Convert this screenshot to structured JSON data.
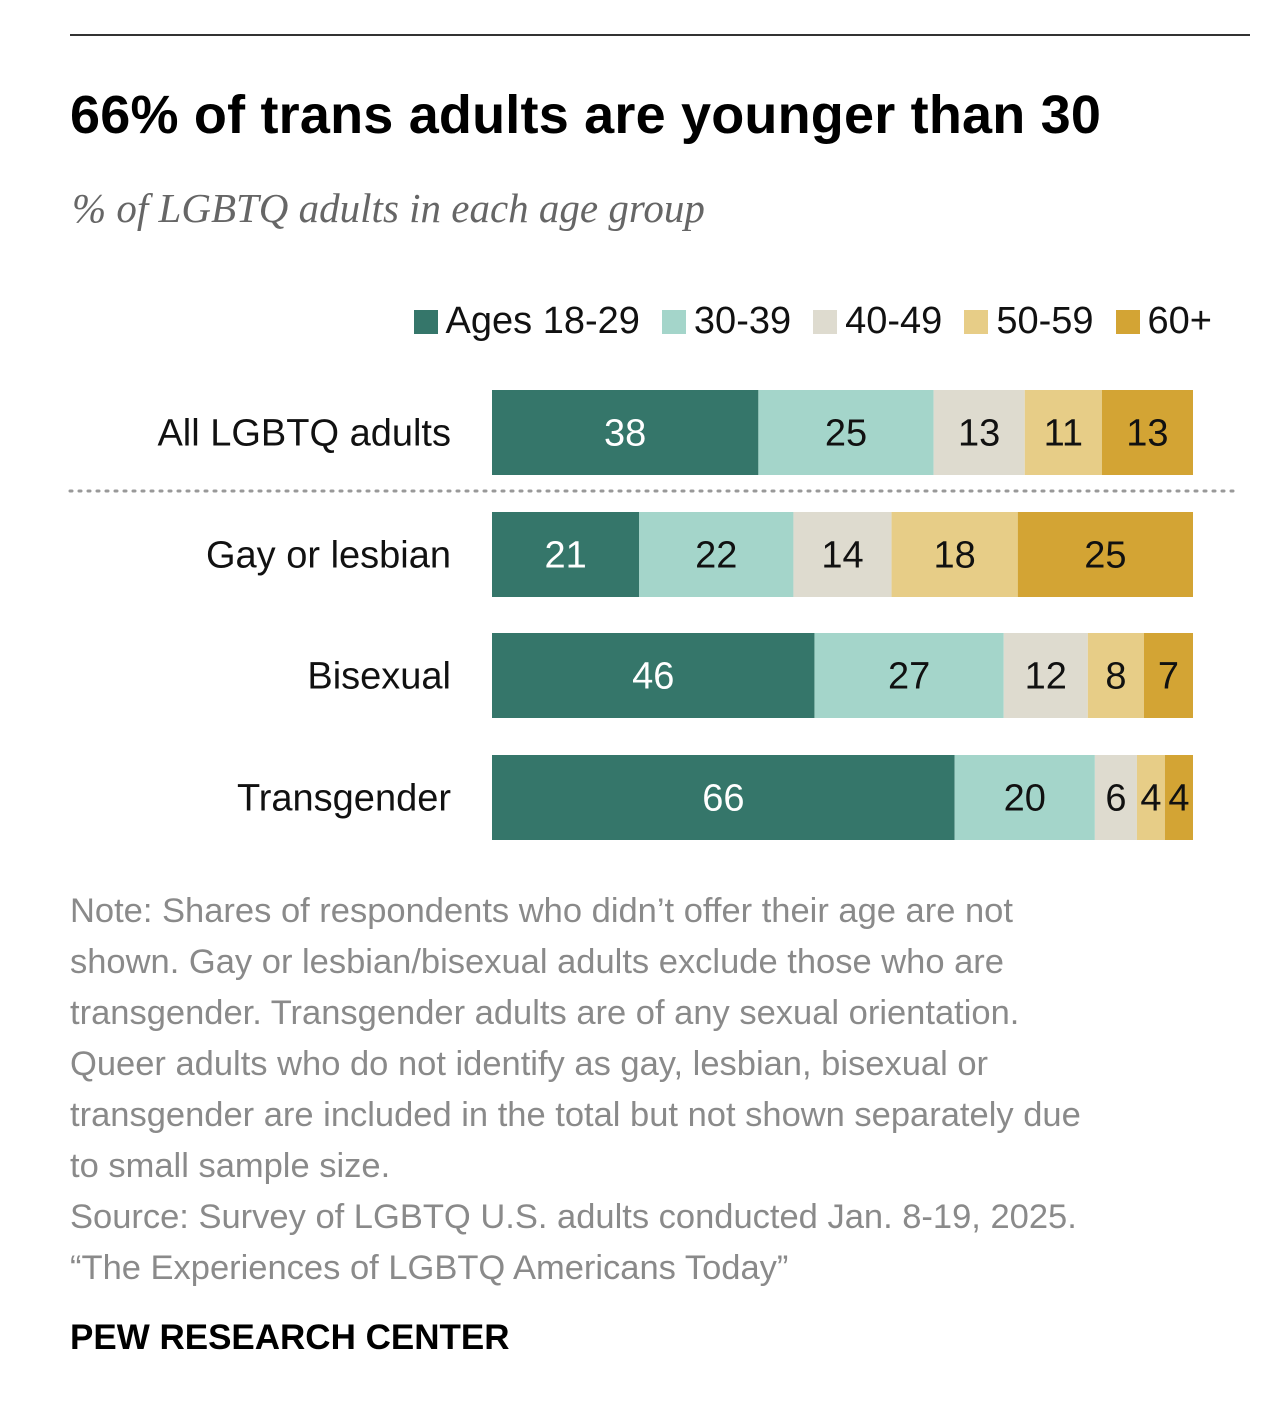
{
  "title": "66% of trans adults are younger than 30",
  "subtitle": "% of LGBTQ adults in each age group",
  "colors": {
    "ages_18_29": "#35766a",
    "ages_30_39": "#a4d5ca",
    "ages_40_49": "#dedbcf",
    "ages_50_59": "#e7cd87",
    "ages_60_plus": "#d3a434"
  },
  "chart_data": {
    "type": "bar",
    "orientation": "horizontal",
    "stacked": true,
    "title": "66% of trans adults are younger than 30",
    "subtitle": "% of LGBTQ adults in each age group",
    "legend_position": "top-right",
    "categories": [
      "All LGBTQ adults",
      "Gay or lesbian",
      "Bisexual",
      "Transgender"
    ],
    "series": [
      {
        "name": "Ages 18-29",
        "values": [
          38,
          21,
          46,
          66
        ],
        "color": "#35766a",
        "label_color": "#ffffff"
      },
      {
        "name": "30-39",
        "values": [
          25,
          22,
          27,
          20
        ],
        "color": "#a4d5ca",
        "label_color": "#111111"
      },
      {
        "name": "40-49",
        "values": [
          13,
          14,
          12,
          6
        ],
        "color": "#dedbcf",
        "label_color": "#111111"
      },
      {
        "name": "50-59",
        "values": [
          11,
          18,
          8,
          4
        ],
        "color": "#e7cd87",
        "label_color": "#111111"
      },
      {
        "name": "60+",
        "values": [
          13,
          25,
          7,
          4
        ],
        "color": "#d3a434",
        "label_color": "#111111"
      }
    ],
    "xlim": [
      0,
      100
    ],
    "grid": false,
    "separator_after_first_row": true
  },
  "notes": [
    "Note: Shares of respondents who didn’t offer their age are not",
    "shown. Gay or lesbian/bisexual adults exclude those who are",
    "transgender. Transgender adults are of any sexual orientation.",
    "Queer adults who do not identify as gay, lesbian, bisexual or",
    "transgender are included in the total but not shown separately due",
    "to small sample size.",
    "Source: Survey of LGBTQ U.S. adults conducted Jan. 8-19, 2025.",
    "“The Experiences of LGBTQ Americans Today”"
  ],
  "credit": "PEW RESEARCH CENTER"
}
